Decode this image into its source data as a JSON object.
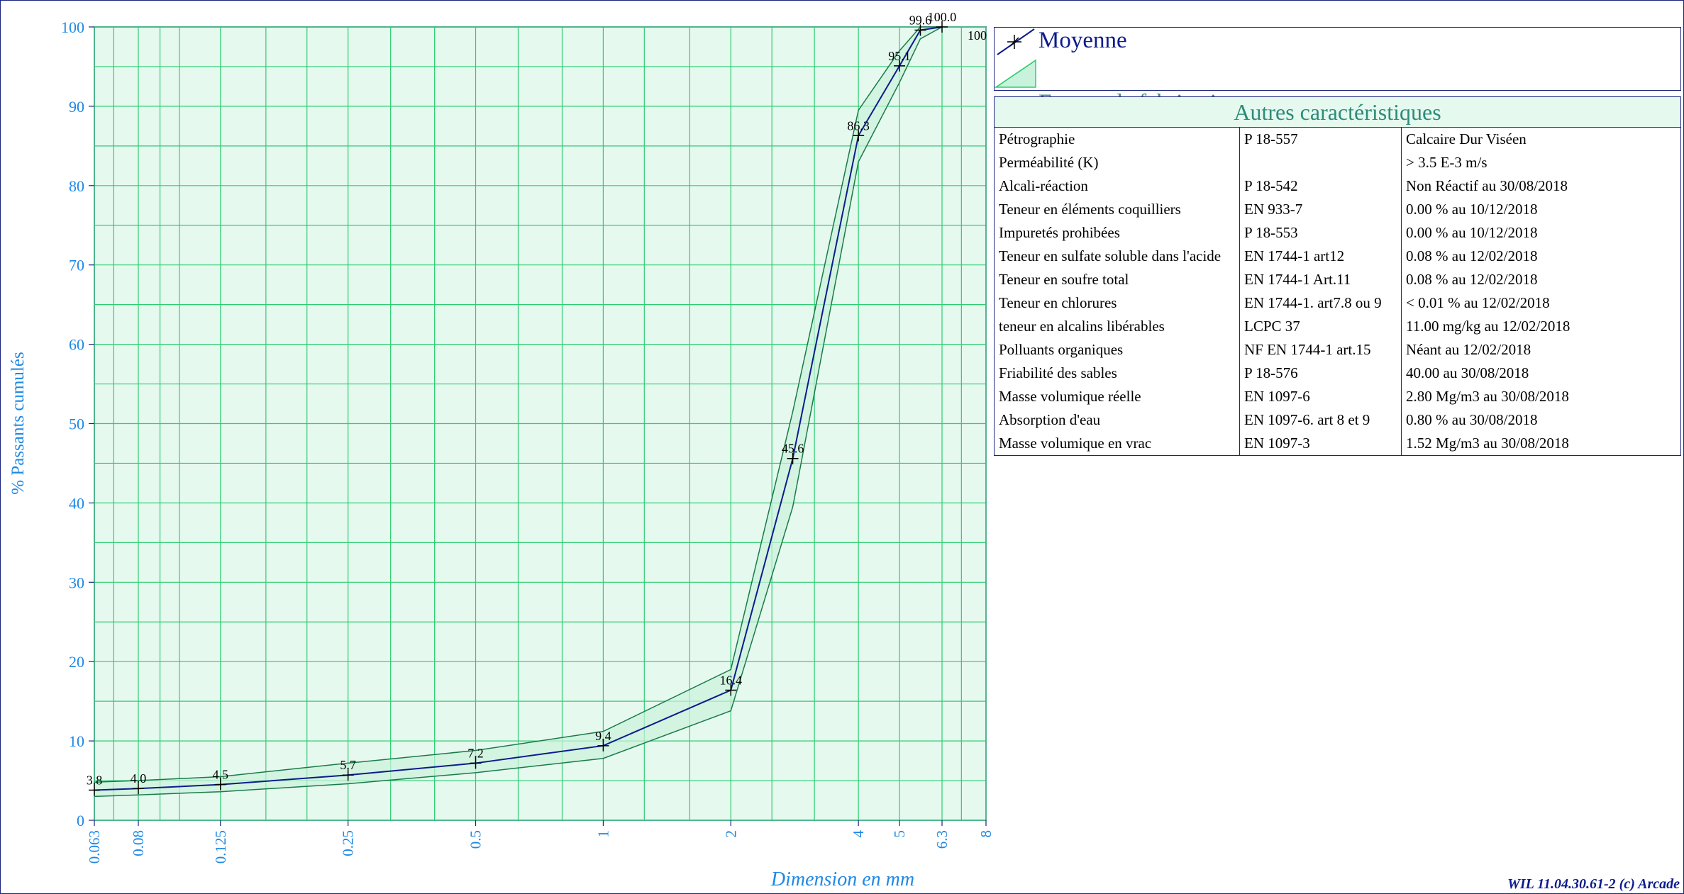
{
  "chart_data": {
    "type": "line",
    "xscale": "log",
    "xlabel": "Dimension en mm",
    "ylabel": "% Passants cumulés",
    "ylim": [
      0,
      100
    ],
    "yticks": [
      0,
      10,
      20,
      30,
      40,
      50,
      60,
      70,
      80,
      90,
      100
    ],
    "xticks": [
      0.063,
      0.08,
      0.125,
      0.25,
      0.5,
      1,
      2,
      4,
      5,
      6.3,
      8
    ],
    "xtick_labels": [
      "0.063",
      "0.08",
      "0.125",
      "0.25",
      "0.5",
      "1",
      "2",
      "4",
      "5",
      "6.3",
      "8"
    ],
    "grid": true,
    "legend_position": "right",
    "series": [
      {
        "name": "Moyenne",
        "x": [
          0.063,
          0.08,
          0.125,
          0.25,
          0.5,
          1,
          2,
          2.8,
          4,
          5,
          5.6,
          6.3
        ],
        "values": [
          3.8,
          4.0,
          4.5,
          5.7,
          7.2,
          9.4,
          16.4,
          45.6,
          86.3,
          95.1,
          99.6,
          100
        ],
        "labels": [
          "3.8",
          "4.0",
          "4.5",
          "5.7",
          "7.2",
          "9.4",
          "16.4",
          "45.6",
          "86.3",
          "95.1",
          "99.6",
          "100.0"
        ],
        "color": "#0d1b8c"
      },
      {
        "name": "Fuseau de fabrication",
        "x": [
          0.063,
          0.08,
          0.125,
          0.25,
          0.5,
          1,
          2,
          2.8,
          4,
          5,
          5.6,
          6.3
        ],
        "upper": [
          4.8,
          5.0,
          5.5,
          7.2,
          8.8,
          11.2,
          19.0,
          51.5,
          89.5,
          97.0,
          100,
          100
        ],
        "lower": [
          3.0,
          3.2,
          3.6,
          4.6,
          6.0,
          7.8,
          13.8,
          39.5,
          83.0,
          93.0,
          98.5,
          100
        ],
        "color": "#2ecc71",
        "fill": "#e6f9ef"
      }
    ],
    "extra_label": "100"
  },
  "legend": {
    "mean_label": "Moyenne",
    "band_label": "Fuseau de fabrication"
  },
  "table": {
    "title": "Autres caractéristiques",
    "rows": [
      [
        "Pétrographie",
        "P 18-557",
        "Calcaire Dur Viséen"
      ],
      [
        "Perméabilité (K)",
        "",
        "> 3.5 E-3 m/s"
      ],
      [
        "Alcali-réaction",
        "P 18-542",
        "Non Réactif au 30/08/2018"
      ],
      [
        "Teneur en éléments coquilliers",
        "EN 933-7",
        "0.00 % au 10/12/2018"
      ],
      [
        "Impuretés prohibées",
        "P 18-553",
        "0.00 % au 10/12/2018"
      ],
      [
        "Teneur en sulfate soluble dans l'acide",
        "EN 1744-1 art12",
        "0.08 % au 12/02/2018"
      ],
      [
        "Teneur en soufre total",
        "EN 1744-1 Art.11",
        "0.08 % au 12/02/2018"
      ],
      [
        "Teneur en chlorures",
        "EN 1744-1. art7.8 ou 9",
        "< 0.01 % au 12/02/2018"
      ],
      [
        "teneur en alcalins libérables",
        "LCPC 37",
        "11.00 mg/kg au 12/02/2018"
      ],
      [
        "Polluants organiques",
        "NF EN 1744-1 art.15",
        "Néant au 12/02/2018"
      ],
      [
        "Friabilité des sables",
        "P 18-576",
        "40.00 au 30/08/2018"
      ],
      [
        "Masse volumique réelle",
        "EN 1097-6",
        "2.80 Mg/m3 au 30/08/2018"
      ],
      [
        "Absorption d'eau",
        "EN 1097-6. art 8 et 9",
        "0.80 % au 30/08/2018"
      ],
      [
        "Masse volumique en vrac",
        "EN 1097-3",
        "1.52 Mg/m3 au 30/08/2018"
      ]
    ]
  },
  "footer": "WIL 11.04.30.61-2 (c) Arcade",
  "colors": {
    "axis_text": "#1e88e5",
    "grid": "#2ecc71",
    "plot_bg": "#e6f9ef",
    "frame": "#1a237e"
  }
}
